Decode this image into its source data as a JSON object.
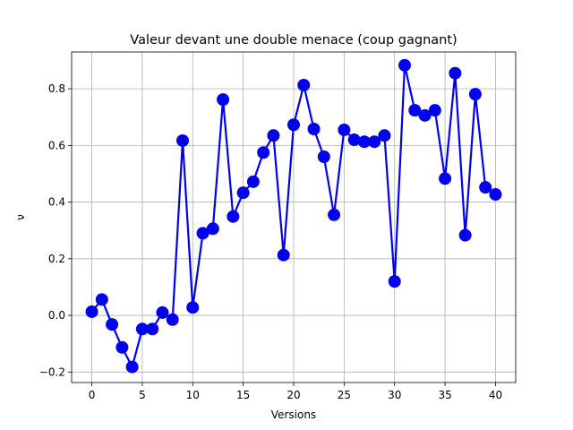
{
  "chart_data": {
    "type": "line",
    "title": "Valeur devant une double menace (coup gagnant)",
    "xlabel": "Versions",
    "ylabel": "ν",
    "xlim": [
      -2,
      42
    ],
    "ylim": [
      -0.237,
      0.93
    ],
    "xticks": [
      0,
      5,
      10,
      15,
      20,
      25,
      30,
      35,
      40
    ],
    "xtick_labels": [
      "0",
      "5",
      "10",
      "15",
      "20",
      "25",
      "30",
      "35",
      "40"
    ],
    "yticks": [
      -0.2,
      0.0,
      0.2,
      0.4,
      0.6,
      0.8
    ],
    "ytick_labels": [
      "−0.2",
      "0.0",
      "0.2",
      "0.4",
      "0.6",
      "0.8"
    ],
    "grid": true,
    "legend": "none",
    "series": [
      {
        "color": "#0000ee",
        "marker": "circle",
        "x": [
          0,
          1,
          2,
          3,
          4,
          5,
          6,
          7,
          8,
          9,
          10,
          11,
          12,
          13,
          14,
          15,
          16,
          17,
          18,
          19,
          20,
          21,
          22,
          23,
          24,
          25,
          26,
          27,
          28,
          29,
          30,
          31,
          32,
          33,
          34,
          35,
          36,
          37,
          38,
          39,
          40
        ],
        "values": [
          0.013,
          0.056,
          -0.032,
          -0.113,
          -0.182,
          -0.048,
          -0.048,
          0.01,
          -0.015,
          0.617,
          0.028,
          0.29,
          0.306,
          0.762,
          0.349,
          0.433,
          0.472,
          0.575,
          0.635,
          0.213,
          0.673,
          0.813,
          0.658,
          0.56,
          0.355,
          0.655,
          0.62,
          0.613,
          0.613,
          0.635,
          0.12,
          0.883,
          0.724,
          0.706,
          0.724,
          0.483,
          0.855,
          0.283,
          0.781,
          0.452,
          0.427
        ]
      }
    ]
  }
}
